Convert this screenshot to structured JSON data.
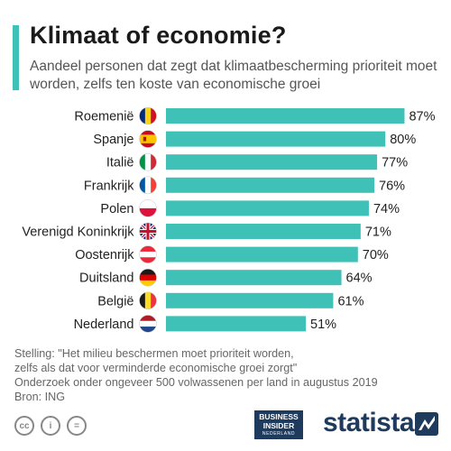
{
  "title": "Klimaat of economie?",
  "subtitle": "Aandeel personen dat zegt dat klimaatbescherming prioriteit moet worden, zelfs ten koste van economische groei",
  "chart_data": {
    "type": "bar",
    "orientation": "horizontal",
    "categories": [
      "Roemenië",
      "Spanje",
      "Italië",
      "Frankrijk",
      "Polen",
      "Verenigd Koninkrijk",
      "Oostenrijk",
      "Duitsland",
      "België",
      "Nederland"
    ],
    "values": [
      87,
      80,
      77,
      76,
      74,
      71,
      70,
      64,
      61,
      51
    ],
    "value_labels": [
      "87%",
      "80%",
      "77%",
      "76%",
      "74%",
      "71%",
      "70%",
      "64%",
      "61%",
      "51%"
    ],
    "flags": [
      "flag-romania-icon",
      "flag-spain-icon",
      "flag-italy-icon",
      "flag-france-icon",
      "flag-poland-icon",
      "flag-uk-icon",
      "flag-austria-icon",
      "flag-germany-icon",
      "flag-belgium-icon",
      "flag-netherlands-icon"
    ],
    "unit": "%",
    "xlim": [
      0,
      100
    ],
    "bar_color": "#3fc1b8",
    "grid": false,
    "legend": false
  },
  "notes": {
    "line1": "Stelling: \"Het milieu beschermen moet prioriteit worden,",
    "line2": "zelfs als dat voor verminderde economische groei zorgt\"",
    "line3": "Onderzoek onder ongeveer 500 volwassenen per land in augustus 2019",
    "line4": "Bron: ING"
  },
  "footer": {
    "cc_icons": [
      "cc",
      "i",
      "="
    ],
    "partner_logo_line1": "BUSINESS",
    "partner_logo_line2": "INSIDER",
    "partner_logo_line3": "NEDERLAND",
    "brand": "statista"
  },
  "colors": {
    "accent": "#3fc1b8",
    "brand": "#1e3a5c"
  }
}
